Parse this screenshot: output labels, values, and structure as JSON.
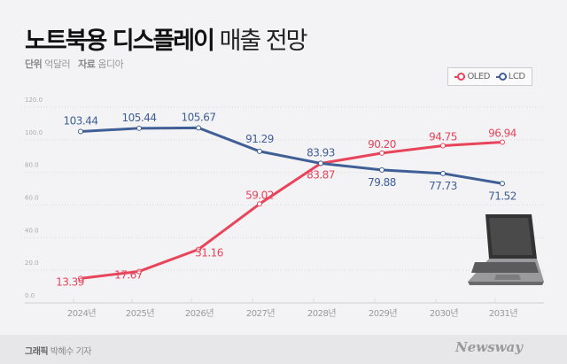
{
  "title": {
    "bold": "노트북용 디스플레이",
    "light": "매출 전망"
  },
  "subtitle": {
    "unit_label": "단위",
    "unit": "억달러",
    "source_label": "자료",
    "source": "옴디아"
  },
  "footer": {
    "credit_label": "그래픽",
    "credit": "박혜수 기자",
    "brand": "Newsway"
  },
  "chart_data": {
    "type": "line",
    "title": "노트북용 디스플레이 매출 전망",
    "ylabel": "억달러",
    "ylim": [
      0,
      120
    ],
    "yticks": [
      "0.0",
      "20.0",
      "40.0",
      "60.0",
      "80.0",
      "100.0",
      "120.0"
    ],
    "categories": [
      "2024년",
      "2025년",
      "2026년",
      "2027년",
      "2028년",
      "2029년",
      "2030년",
      "2031년"
    ],
    "legend_position": "top-right",
    "series": [
      {
        "name": "OLED",
        "color": "#e8445a",
        "values": [
          13.39,
          17.67,
          31.16,
          59.02,
          83.87,
          90.2,
          94.75,
          96.94
        ],
        "labels": [
          "13.39",
          "17.67",
          "31.16",
          "59.02",
          "83.87",
          "90.20",
          "94.75",
          "96.94"
        ]
      },
      {
        "name": "LCD",
        "color": "#3f5f96",
        "values": [
          103.44,
          105.44,
          105.67,
          91.29,
          83.93,
          79.88,
          77.73,
          71.52
        ],
        "labels": [
          "103.44",
          "105.44",
          "105.67",
          "91.29",
          "83.93",
          "79.88",
          "77.73",
          "71.52"
        ]
      }
    ]
  }
}
